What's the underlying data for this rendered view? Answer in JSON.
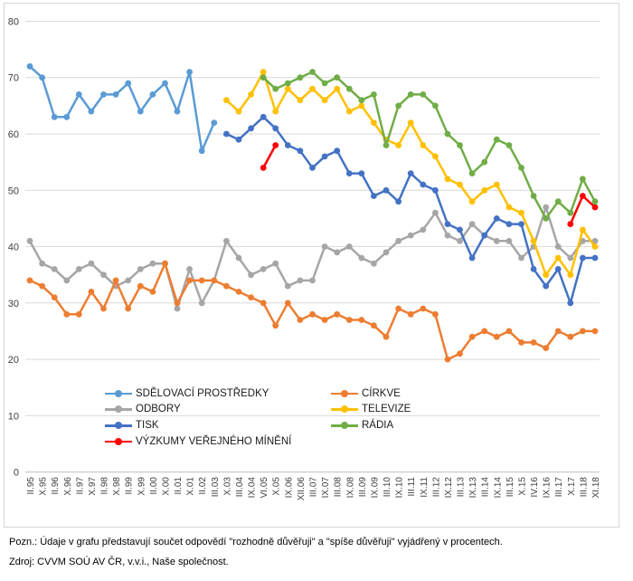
{
  "chart_data": {
    "type": "line",
    "title": "",
    "xlabel": "",
    "ylabel": "",
    "ylim": [
      0,
      80
    ],
    "ytick_step": 10,
    "grid": true,
    "legend_position": "inside-bottom-left",
    "categories": [
      "II.95",
      "X.95",
      "II.96",
      "X.96",
      "II.97",
      "X.97",
      "II.98",
      "X.98",
      "II.99",
      "X.99",
      "II.00",
      "X.00",
      "II.01",
      "X.01",
      "II.02",
      "III.03",
      "X.03",
      "III.04",
      "IX.04",
      "VI.05",
      "X.05",
      "IX.06",
      "XII.06",
      "III.07",
      "IX.07",
      "III.08",
      "IX.08",
      "III.09",
      "IX.09",
      "III.10",
      "IX.10",
      "III.11",
      "IX.11",
      "III.12",
      "IX.12",
      "III.13",
      "IX.13",
      "III.14",
      "IX.14",
      "III.15",
      "X.15",
      "IV.16",
      "IX.16",
      "III.17",
      "X.17",
      "III.18",
      "XI.18"
    ],
    "series": [
      {
        "name": "SDĚLOVACÍ PROSTŘEDKY",
        "key": "sdelovaci-prostredky",
        "color": "#5B9BD5",
        "values": [
          72,
          70,
          63,
          63,
          67,
          64,
          67,
          67,
          69,
          64,
          67,
          69,
          64,
          71,
          57,
          62,
          null,
          null,
          null,
          null,
          null,
          null,
          null,
          null,
          null,
          null,
          null,
          null,
          null,
          null,
          null,
          null,
          null,
          null,
          null,
          null,
          null,
          null,
          null,
          null,
          null,
          null,
          null,
          null,
          null,
          null,
          null
        ]
      },
      {
        "name": "ODBORY",
        "key": "odbory",
        "color": "#A6A6A6",
        "values": [
          41,
          37,
          36,
          34,
          36,
          37,
          35,
          33,
          34,
          36,
          37,
          37,
          29,
          36,
          30,
          34,
          41,
          38,
          35,
          36,
          37,
          33,
          34,
          34,
          40,
          39,
          40,
          38,
          37,
          39,
          41,
          42,
          43,
          46,
          42,
          41,
          44,
          42,
          41,
          41,
          38,
          40,
          47,
          40,
          38,
          41,
          41
        ]
      },
      {
        "name": "TISK",
        "key": "tisk",
        "color": "#4472C4",
        "values": [
          null,
          null,
          null,
          null,
          null,
          null,
          null,
          null,
          null,
          null,
          null,
          null,
          null,
          null,
          null,
          null,
          60,
          59,
          61,
          63,
          61,
          58,
          57,
          54,
          56,
          57,
          53,
          53,
          49,
          50,
          48,
          53,
          51,
          50,
          44,
          43,
          38,
          42,
          45,
          44,
          44,
          36,
          33,
          36,
          30,
          38,
          38
        ]
      },
      {
        "name": "VÝZKUMY VEŘEJNÉHO MÍNĚNÍ",
        "key": "vyzkumy-verejneho-mineni",
        "color": "#FF0000",
        "values": [
          null,
          null,
          null,
          null,
          null,
          null,
          null,
          null,
          null,
          null,
          null,
          null,
          null,
          null,
          null,
          null,
          null,
          null,
          null,
          54,
          58,
          null,
          null,
          null,
          null,
          null,
          null,
          null,
          null,
          null,
          null,
          null,
          null,
          null,
          null,
          null,
          null,
          null,
          null,
          null,
          null,
          null,
          null,
          null,
          44,
          49,
          47
        ]
      },
      {
        "name": "CÍRKVE",
        "key": "cirkve",
        "color": "#ED7D31",
        "values": [
          34,
          33,
          31,
          28,
          28,
          32,
          29,
          34,
          29,
          33,
          32,
          37,
          30,
          34,
          34,
          34,
          33,
          32,
          31,
          30,
          26,
          30,
          27,
          28,
          27,
          28,
          27,
          27,
          26,
          24,
          29,
          28,
          29,
          28,
          20,
          21,
          24,
          25,
          24,
          25,
          23,
          23,
          22,
          25,
          24,
          25,
          25
        ]
      },
      {
        "name": "TELEVIZE",
        "key": "televize",
        "color": "#FFC000",
        "values": [
          null,
          null,
          null,
          null,
          null,
          null,
          null,
          null,
          null,
          null,
          null,
          null,
          null,
          null,
          null,
          null,
          66,
          64,
          67,
          71,
          64,
          68,
          66,
          68,
          66,
          68,
          64,
          65,
          62,
          59,
          58,
          62,
          58,
          56,
          52,
          51,
          48,
          50,
          51,
          47,
          46,
          41,
          35,
          38,
          35,
          43,
          40
        ]
      },
      {
        "name": "RÁDIA",
        "key": "radia",
        "color": "#70AD47",
        "values": [
          null,
          null,
          null,
          null,
          null,
          null,
          null,
          null,
          null,
          null,
          null,
          null,
          null,
          null,
          null,
          null,
          null,
          null,
          null,
          70,
          68,
          69,
          70,
          71,
          69,
          70,
          68,
          66,
          67,
          58,
          65,
          67,
          67,
          65,
          60,
          58,
          53,
          55,
          59,
          58,
          54,
          49,
          45,
          48,
          46,
          52,
          48
        ]
      }
    ]
  },
  "legend": {
    "col1": [
      0,
      1,
      2,
      3
    ],
    "col2": [
      4,
      5,
      6
    ]
  },
  "footnotes": {
    "note": "Pozn.: Údaje v grafu představují součet odpovědí \"rozhodně důvěřuji\" a \"spíše důvěřuji\" vyjádřený v procentech.",
    "source": "Zdroj: CVVM SOÚ AV ČR, v.v.i., Naše společnost."
  }
}
